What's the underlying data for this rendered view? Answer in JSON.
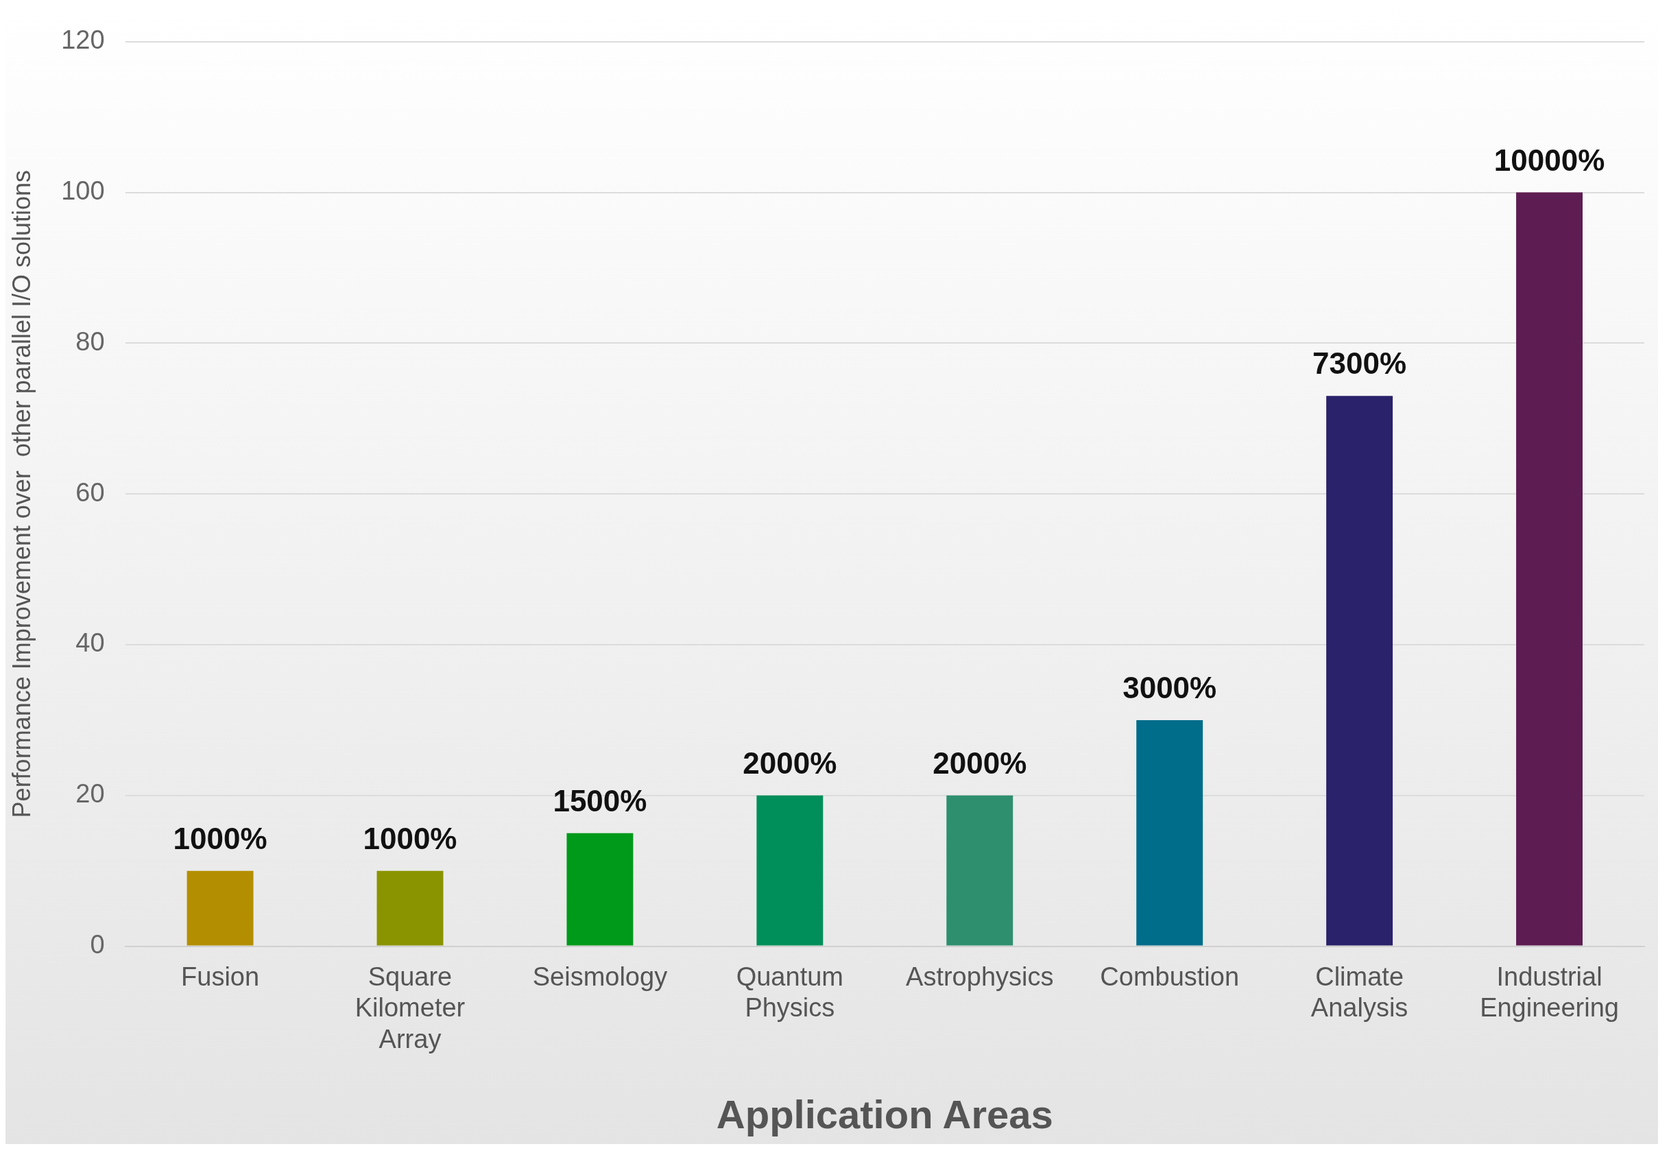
{
  "chart_data": {
    "type": "bar",
    "xlabel": "Application Areas",
    "ylabel": "Performance Improvement over  other parallel I/O solutions",
    "categories": [
      "Fusion",
      "Square Kilometer Array",
      "Seismology",
      "Quantum Physics",
      "Astrophysics",
      "Combustion",
      "Climate Analysis",
      "Industrial Engineering"
    ],
    "values": [
      10,
      10,
      15,
      20,
      20,
      30,
      73,
      100
    ],
    "colors": [
      "#b38f00",
      "#8a9400",
      "#009a1a",
      "#008f5a",
      "#2e8f6e",
      "#006d8a",
      "#2a226a",
      "#5e1d52"
    ],
    "value_labels": [
      "1000%",
      "1000%",
      "1500%",
      "2000%",
      "2000%",
      "3000%",
      "7300%",
      "10000%"
    ],
    "ylim": [
      0,
      120
    ],
    "yticks": [
      0,
      20,
      40,
      60,
      80,
      100,
      120
    ],
    "grid": "y",
    "legend": false
  }
}
